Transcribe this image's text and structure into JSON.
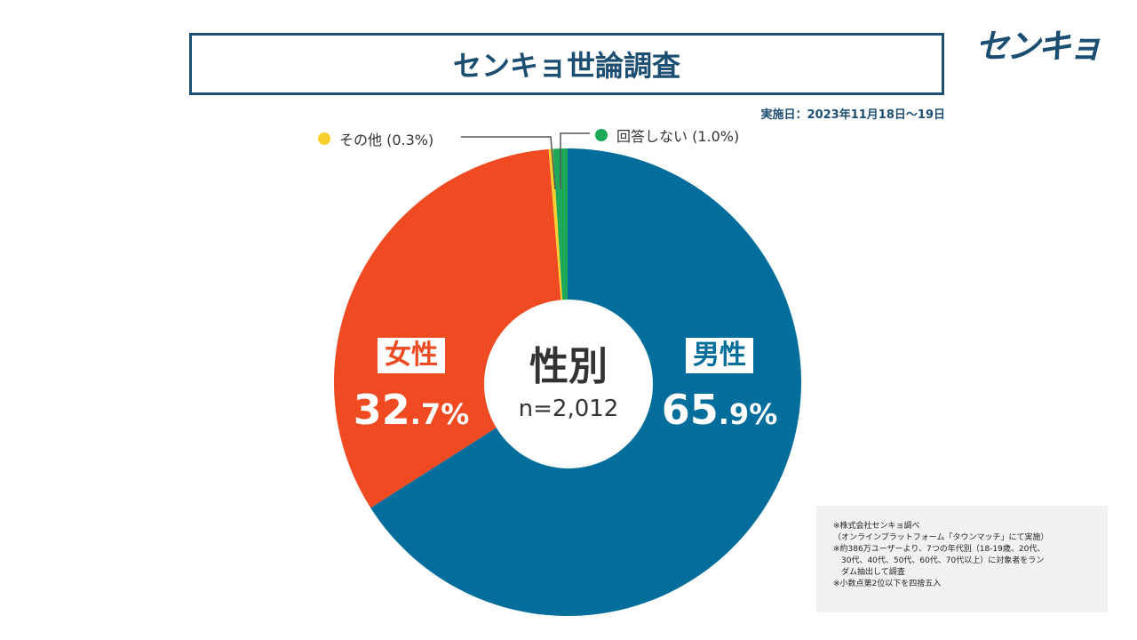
{
  "header": {
    "title": "センキョ世論調査",
    "logo_text": "センキョ",
    "survey_date": "実施日：2023年11月18日～19日"
  },
  "chart_data": {
    "type": "pie",
    "title": "性別",
    "sample_size": "n=2,012",
    "slices": [
      {
        "name": "男性",
        "value": 65.9,
        "value_int": "65",
        "value_dec": ".9%",
        "color": "#036e9c"
      },
      {
        "name": "女性",
        "value": 32.7,
        "value_int": "32",
        "value_dec": ".7%",
        "color": "#ef4a22"
      },
      {
        "name": "その他",
        "value": 0.3,
        "label": "その他 (0.3%)",
        "color": "#f8cf2d"
      },
      {
        "name": "回答しない",
        "value": 1.0,
        "label": "回答しない (1.0%)",
        "color": "#1ea859"
      }
    ]
  },
  "notes": [
    "※株式会社センキョ調べ",
    "（オンラインプラットフォーム「タウンマッチ」にて実施）",
    "※約386万ユーザーより、7つの年代別（18-19歳、20代、",
    "　30代、40代、50代、60代、70代以上）に対象者をラン",
    "　ダム抽出して調査",
    "※小数点第2位以下を四捨五入"
  ]
}
